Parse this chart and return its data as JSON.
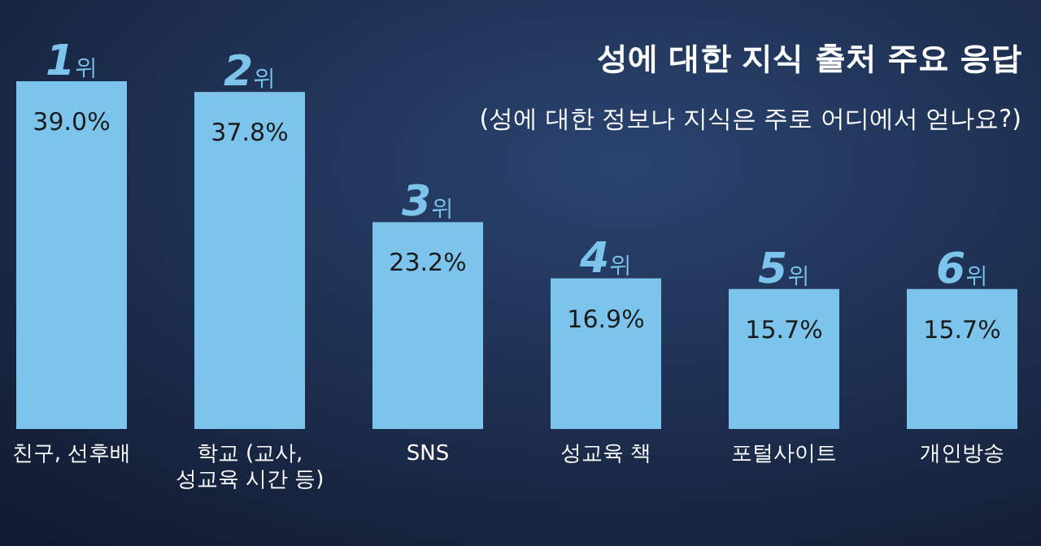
{
  "chart_data": {
    "type": "bar",
    "title": "성에 대한 지식 출처 주요 응답",
    "subtitle": "(성에 대한 정보나 지식은 주로 어디에서 얻나요?)",
    "categories": [
      "친구, 선후배",
      "학교 (교사, 성교육 시간 등)",
      "SNS",
      "성교육 책",
      "포털사이트",
      "개인방송"
    ],
    "values": [
      39.0,
      37.8,
      23.2,
      16.9,
      15.7,
      15.7
    ],
    "value_labels": [
      "39.0%",
      "37.8%",
      "23.2%",
      "16.9%",
      "15.7%",
      "15.7%"
    ],
    "color": "#7cc4ec",
    "annotations": [
      {
        "text": "1위",
        "x": "친구, 선후배",
        "y": 39.0
      },
      {
        "text": "2위",
        "x": "학교 (교사, 성교육 시간 등)",
        "y": 37.8
      },
      {
        "text": "3위",
        "x": "SNS",
        "y": 23.2
      },
      {
        "text": "4위",
        "x": "성교육 책",
        "y": 16.9
      },
      {
        "text": "5위",
        "x": "포털사이트",
        "y": 15.7
      },
      {
        "text": "6위",
        "x": "개인방송",
        "y": 15.7
      }
    ],
    "ylim": [
      0,
      39.0
    ]
  }
}
